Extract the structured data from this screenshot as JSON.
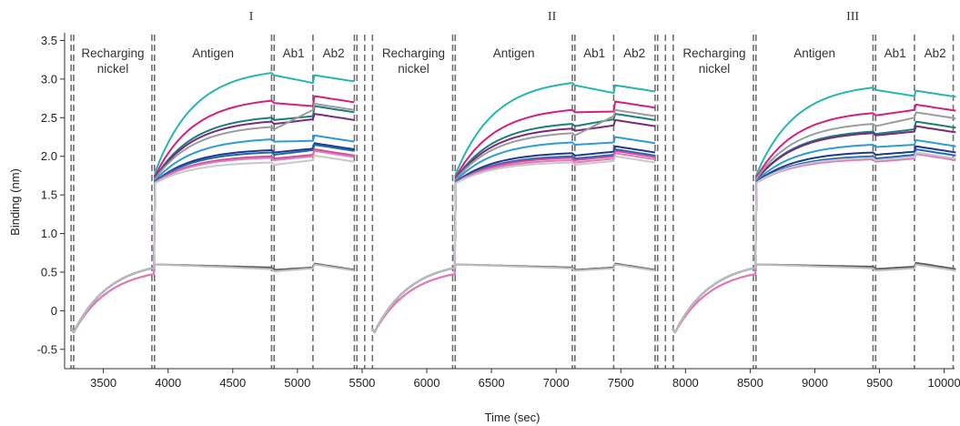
{
  "chart_data": {
    "type": "line",
    "xlabel": "Time (sec)",
    "ylabel": "Binding (nm)",
    "xlim": [
      3200,
      10080
    ],
    "ylim": [
      -0.75,
      3.6
    ],
    "x_ticks": [
      3500,
      4000,
      4500,
      5000,
      5500,
      6000,
      6500,
      7000,
      7500,
      8000,
      8500,
      9000,
      9500,
      10000
    ],
    "x_tick_labels": [
      "3500",
      "4000",
      "4500",
      "5000",
      "5500",
      "6000",
      "6500",
      "7000",
      "7500",
      "8000",
      "8500",
      "9000",
      "9500",
      "10000"
    ],
    "y_ticks": [
      -0.5,
      0,
      0.5,
      1.0,
      1.5,
      2.0,
      2.5,
      3.0,
      3.5
    ],
    "y_tick_labels": [
      "-0.5",
      "0",
      "0.5",
      "1.0",
      "1.5",
      "2.0",
      "2.5",
      "3.0",
      "3.5"
    ],
    "grid": false,
    "cycles": [
      {
        "label": "I",
        "recharge_start": 3250,
        "antigen_start": 3895,
        "ab1_start": 4820,
        "ab2_start": 5130,
        "end": 5440
      },
      {
        "label": "II",
        "recharge_start": 3250,
        "antigen_start": 3895,
        "ab1_start": 4820,
        "ab2_start": 5130,
        "end": 5440,
        "offset": 2325
      },
      {
        "label": "III",
        "recharge_start": 3250,
        "antigen_start": 3895,
        "ab1_start": 4820,
        "ab2_start": 5130,
        "end": 5440,
        "offset": 4650
      }
    ],
    "cycle_labels": [
      "I",
      "II",
      "III"
    ],
    "phase_labels": {
      "recharge_line1": "Recharging",
      "recharge_line2": "nickel",
      "antigen": "Antigen",
      "ab1": "Ab1",
      "ab2": "Ab2"
    },
    "phase_boundaries": [
      3250,
      3270,
      3875,
      3895,
      4800,
      4820,
      5120,
      5440,
      5460,
      5520,
      5580,
      6200,
      6220,
      7125,
      7145,
      7445,
      7765,
      7785,
      7845,
      7905,
      8525,
      8545,
      9450,
      9470,
      9770,
      10070
    ],
    "traces": [
      {
        "color": "#26b5b0",
        "antigen_end": [
          3.08,
          2.95,
          2.89
        ],
        "ab1_end": [
          2.95,
          2.82,
          2.78
        ],
        "ab2_end": [
          3.0,
          2.87,
          2.8
        ]
      },
      {
        "color": "#d41f80",
        "antigen_end": [
          2.72,
          2.6,
          2.56
        ],
        "ab1_end": [
          2.65,
          2.58,
          2.6
        ],
        "ab2_end": [
          2.73,
          2.66,
          2.62
        ]
      },
      {
        "color": "#1a7f7a",
        "antigen_end": [
          2.5,
          2.42,
          2.32
        ],
        "ab1_end": [
          2.52,
          2.48,
          2.35
        ],
        "ab2_end": [
          2.6,
          2.5,
          2.4
        ]
      },
      {
        "color": "#7a2a7e",
        "antigen_end": [
          2.45,
          2.36,
          2.3
        ],
        "ab1_end": [
          2.48,
          2.4,
          2.32
        ],
        "ab2_end": [
          2.5,
          2.42,
          2.34
        ]
      },
      {
        "color": "#9c9c9c",
        "antigen_end": [
          2.38,
          2.3,
          2.42
        ],
        "ab1_end": [
          2.6,
          2.52,
          2.5
        ],
        "ab2_end": [
          2.63,
          2.55,
          2.52
        ]
      },
      {
        "color": "#2e9bd6",
        "antigen_end": [
          2.22,
          2.18,
          2.15
        ],
        "ab1_end": [
          2.2,
          2.18,
          2.15
        ],
        "ab2_end": [
          2.22,
          2.2,
          2.16
        ]
      },
      {
        "color": "#1f3a8a",
        "antigen_end": [
          2.08,
          2.04,
          2.05
        ],
        "ab1_end": [
          2.1,
          2.06,
          2.06
        ],
        "ab2_end": [
          2.12,
          2.08,
          2.08
        ]
      },
      {
        "color": "#2266b0",
        "antigen_end": [
          2.05,
          2.0,
          2.0
        ],
        "ab1_end": [
          2.08,
          2.02,
          2.02
        ],
        "ab2_end": [
          2.1,
          2.04,
          2.04
        ]
      },
      {
        "color": "#cf4a9a",
        "antigen_end": [
          2.0,
          1.98,
          1.97
        ],
        "ab1_end": [
          2.02,
          2.0,
          1.99
        ],
        "ab2_end": [
          2.04,
          2.02,
          2.0
        ]
      },
      {
        "color": "#e07ab8",
        "antigen_end": [
          1.98,
          1.95,
          1.96
        ],
        "ab1_end": [
          2.0,
          1.97,
          1.97
        ],
        "ab2_end": [
          2.02,
          1.99,
          1.98
        ]
      },
      {
        "color": "#c8c8c8",
        "antigen_end": [
          1.92,
          1.92,
          1.98
        ],
        "ab1_end": [
          1.95,
          1.94,
          1.99
        ],
        "ab2_end": [
          1.96,
          1.95,
          2.0
        ]
      },
      {
        "color": "#5a5a5a",
        "antigen_end": [
          0.56,
          0.56,
          0.57
        ],
        "ab1_end": [
          0.56,
          0.56,
          0.57
        ],
        "ab2_end": [
          0.56,
          0.56,
          0.57
        ]
      },
      {
        "color": "#bdbdbd",
        "antigen_end": [
          0.54,
          0.55,
          0.55
        ],
        "ab1_end": [
          0.55,
          0.55,
          0.55
        ],
        "ab2_end": [
          0.55,
          0.55,
          0.55
        ]
      }
    ]
  }
}
